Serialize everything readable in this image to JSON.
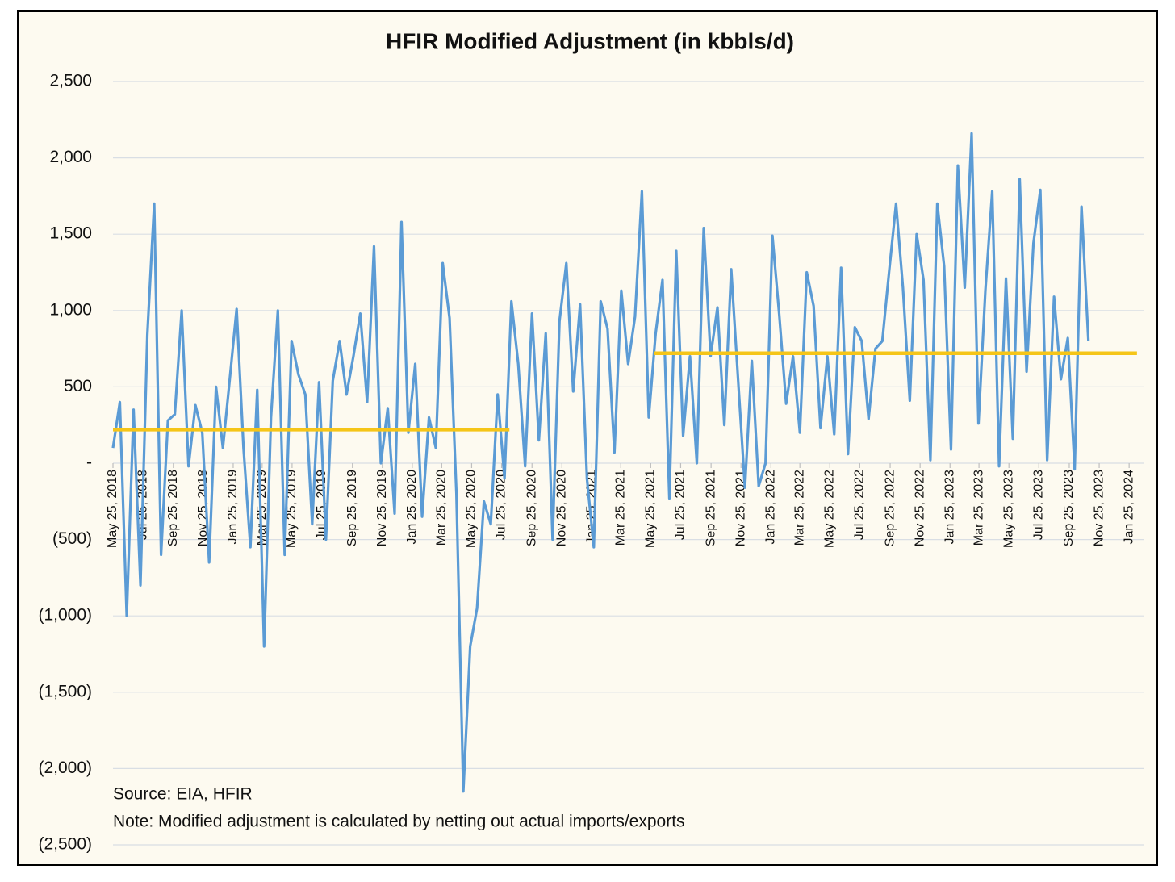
{
  "chart_data": {
    "type": "line",
    "title": "HFIR Modified Adjustment (in kbbls/d)",
    "annotations": [
      "Source: EIA, HFIR",
      "Note: Modified adjustment is calculated by netting out actual imports/exports"
    ],
    "x": [
      "2018-05-25",
      "2018-06-08",
      "2018-06-22",
      "2018-07-06",
      "2018-07-20",
      "2018-08-03",
      "2018-08-17",
      "2018-08-31",
      "2018-09-14",
      "2018-09-28",
      "2018-10-12",
      "2018-10-26",
      "2018-11-09",
      "2018-11-23",
      "2018-12-07",
      "2018-12-21",
      "2019-01-04",
      "2019-01-18",
      "2019-02-01",
      "2019-02-15",
      "2019-03-01",
      "2019-03-15",
      "2019-03-29",
      "2019-04-12",
      "2019-04-26",
      "2019-05-10",
      "2019-05-24",
      "2019-06-07",
      "2019-06-21",
      "2019-07-05",
      "2019-07-19",
      "2019-08-02",
      "2019-08-16",
      "2019-08-30",
      "2019-09-13",
      "2019-09-27",
      "2019-10-11",
      "2019-10-25",
      "2019-11-08",
      "2019-11-22",
      "2019-12-06",
      "2019-12-20",
      "2020-01-03",
      "2020-01-17",
      "2020-01-31",
      "2020-02-14",
      "2020-02-28",
      "2020-03-13",
      "2020-03-27",
      "2020-04-10",
      "2020-04-24",
      "2020-05-08",
      "2020-05-22",
      "2020-06-05",
      "2020-06-19",
      "2020-07-03",
      "2020-07-17",
      "2020-07-31",
      "2020-08-14",
      "2020-08-28",
      "2020-09-11",
      "2020-09-25",
      "2020-10-09",
      "2020-10-23",
      "2020-11-06",
      "2020-11-20",
      "2020-12-04",
      "2020-12-18",
      "2021-01-01",
      "2021-01-15",
      "2021-01-29",
      "2021-02-12",
      "2021-02-26",
      "2021-03-12",
      "2021-03-26",
      "2021-04-09",
      "2021-04-23",
      "2021-05-07",
      "2021-05-21",
      "2021-06-04",
      "2021-06-18",
      "2021-07-02",
      "2021-07-16",
      "2021-07-30",
      "2021-08-13",
      "2021-08-27",
      "2021-09-10",
      "2021-09-24",
      "2021-10-08",
      "2021-10-22",
      "2021-11-05",
      "2021-11-19",
      "2021-12-03",
      "2021-12-17",
      "2021-12-31",
      "2022-01-14",
      "2022-01-28",
      "2022-02-11",
      "2022-02-25",
      "2022-03-11",
      "2022-03-25",
      "2022-04-08",
      "2022-04-22",
      "2022-05-06",
      "2022-05-20",
      "2022-06-03",
      "2022-06-17",
      "2022-07-01",
      "2022-07-15",
      "2022-07-29",
      "2022-08-12",
      "2022-08-26",
      "2022-09-09",
      "2022-09-23",
      "2022-10-07",
      "2022-10-21",
      "2022-11-04",
      "2022-11-18",
      "2022-12-02",
      "2022-12-16",
      "2022-12-30",
      "2023-01-13",
      "2023-01-27",
      "2023-02-10",
      "2023-02-24",
      "2023-03-10",
      "2023-03-24",
      "2023-04-07",
      "2023-04-21",
      "2023-05-05",
      "2023-05-19",
      "2023-06-02",
      "2023-06-16",
      "2023-06-30",
      "2023-07-14",
      "2023-07-28",
      "2023-08-11",
      "2023-08-25",
      "2023-09-08",
      "2023-09-22",
      "2023-10-06",
      "2023-10-20",
      "2023-11-03"
    ],
    "series": [
      {
        "color": "#5b9bd5",
        "values": [
          100,
          400,
          -1000,
          350,
          -800,
          840,
          1700,
          -600,
          280,
          320,
          1000,
          -20,
          380,
          200,
          -650,
          500,
          100,
          550,
          1010,
          100,
          -550,
          480,
          -1200,
          300,
          1000,
          -600,
          800,
          580,
          450,
          -400,
          530,
          -500,
          540,
          800,
          450,
          700,
          980,
          400,
          1420,
          0,
          360,
          -330,
          1580,
          200,
          650,
          -350,
          300,
          100,
          1310,
          950,
          -200,
          -2150,
          -1200,
          -950,
          -250,
          -400,
          450,
          -100,
          1060,
          650,
          -20,
          980,
          150,
          850,
          -500,
          930,
          1310,
          470,
          1040,
          -100,
          -550,
          1060,
          880,
          70,
          1130,
          650,
          960,
          1780,
          300,
          850,
          1200,
          -230,
          1390,
          180,
          700,
          0,
          1540,
          700,
          1020,
          250,
          1270,
          550,
          -160,
          670,
          -150,
          0,
          1490,
          970,
          390,
          700,
          200,
          1250,
          1030,
          230,
          700,
          190,
          1280,
          60,
          890,
          800,
          290,
          750,
          800,
          1260,
          1700,
          1150,
          410,
          1500,
          1200,
          20,
          1700,
          1290,
          90,
          1950,
          1150,
          2160,
          260,
          1130,
          1780,
          -20,
          1210,
          160,
          1860,
          600,
          1440,
          1790,
          20,
          1090,
          550,
          820,
          -40,
          1680,
          800
        ]
      }
    ],
    "average_lines": [
      {
        "color": "#f5c518",
        "value": 220,
        "x_start": "2018-05-25",
        "x_end": "2020-08-10"
      },
      {
        "color": "#f5c518",
        "value": 720,
        "x_start": "2021-06-01",
        "x_end": "2024-02-10"
      }
    ],
    "xlim": [
      "2018-05-25",
      "2024-02-25"
    ],
    "xticks": [
      {
        "value": "2018-05-25",
        "label": "May 25, 2018"
      },
      {
        "value": "2018-07-25",
        "label": "Jul 25, 2018"
      },
      {
        "value": "2018-09-25",
        "label": "Sep 25, 2018"
      },
      {
        "value": "2018-11-25",
        "label": "Nov 25, 2018"
      },
      {
        "value": "2019-01-25",
        "label": "Jan 25, 2019"
      },
      {
        "value": "2019-03-25",
        "label": "Mar 25, 2019"
      },
      {
        "value": "2019-05-25",
        "label": "May 25, 2019"
      },
      {
        "value": "2019-07-25",
        "label": "Jul 25, 2019"
      },
      {
        "value": "2019-09-25",
        "label": "Sep 25, 2019"
      },
      {
        "value": "2019-11-25",
        "label": "Nov 25, 2019"
      },
      {
        "value": "2020-01-25",
        "label": "Jan 25, 2020"
      },
      {
        "value": "2020-03-25",
        "label": "Mar 25, 2020"
      },
      {
        "value": "2020-05-25",
        "label": "May 25, 2020"
      },
      {
        "value": "2020-07-25",
        "label": "Jul 25, 2020"
      },
      {
        "value": "2020-09-25",
        "label": "Sep 25, 2020"
      },
      {
        "value": "2020-11-25",
        "label": "Nov 25, 2020"
      },
      {
        "value": "2021-01-25",
        "label": "Jan 25, 2021"
      },
      {
        "value": "2021-03-25",
        "label": "Mar 25, 2021"
      },
      {
        "value": "2021-05-25",
        "label": "May 25, 2021"
      },
      {
        "value": "2021-07-25",
        "label": "Jul 25, 2021"
      },
      {
        "value": "2021-09-25",
        "label": "Sep 25, 2021"
      },
      {
        "value": "2021-11-25",
        "label": "Nov 25, 2021"
      },
      {
        "value": "2022-01-25",
        "label": "Jan 25, 2022"
      },
      {
        "value": "2022-03-25",
        "label": "Mar 25, 2022"
      },
      {
        "value": "2022-05-25",
        "label": "May 25, 2022"
      },
      {
        "value": "2022-07-25",
        "label": "Jul 25, 2022"
      },
      {
        "value": "2022-09-25",
        "label": "Sep 25, 2022"
      },
      {
        "value": "2022-11-25",
        "label": "Nov 25, 2022"
      },
      {
        "value": "2023-01-25",
        "label": "Jan 25, 2023"
      },
      {
        "value": "2023-03-25",
        "label": "Mar 25, 2023"
      },
      {
        "value": "2023-05-25",
        "label": "May 25, 2023"
      },
      {
        "value": "2023-07-25",
        "label": "Jul 25, 2023"
      },
      {
        "value": "2023-09-25",
        "label": "Sep 25, 2023"
      },
      {
        "value": "2023-11-25",
        "label": "Nov 25, 2023"
      },
      {
        "value": "2024-01-25",
        "label": "Jan 25, 2024"
      }
    ],
    "ylim": [
      -2500,
      2500
    ],
    "yticks": [
      {
        "value": 2500,
        "label": "2,500"
      },
      {
        "value": 2000,
        "label": "2,000"
      },
      {
        "value": 1500,
        "label": "1,500"
      },
      {
        "value": 1000,
        "label": "1,000"
      },
      500,
      {
        "value": 0,
        "label": "-"
      },
      {
        "value": -500,
        "label": "(500)"
      },
      {
        "value": -1000,
        "label": "(1,000)"
      },
      {
        "value": -1500,
        "label": "(1,500)"
      },
      {
        "value": -2000,
        "label": "(2,000)"
      },
      {
        "value": -2500,
        "label": "(2,500)"
      }
    ],
    "grid": true
  }
}
